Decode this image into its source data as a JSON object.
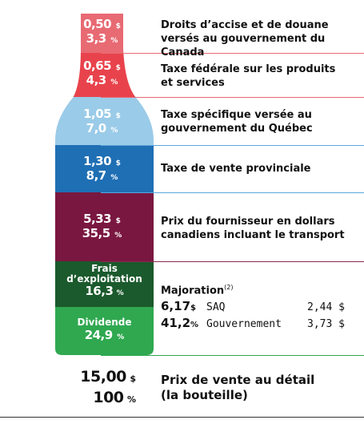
{
  "colors": {
    "band1": "#e86a73",
    "band2": "#e8434c",
    "band3": "#9acbe8",
    "band4": "#1f6fb4",
    "band5": "#7a1740",
    "band6": "#1b5a2c",
    "band7": "#2fa850",
    "sep_red": "#e86a73",
    "sep_blue": "#5aa6dc",
    "sep_purple": "#8a2a50",
    "sep_green": "#2fa850"
  },
  "segments": [
    {
      "amount": "0,50",
      "percent": "3,3",
      "label_line1": "Droits d’accise et de douane",
      "label_line2": "versés au gouvernement du Canada"
    },
    {
      "amount": "0,65",
      "percent": "4,3",
      "label_line1": "Taxe fédérale sur les produits",
      "label_line2": "et services"
    },
    {
      "amount": "1,05",
      "percent": "7,0",
      "label_line1": "Taxe spécifique versée au",
      "label_line2": "gouvernement du Québec"
    },
    {
      "amount": "1,30",
      "percent": "8,7",
      "label_line1": "Taxe de vente provinciale",
      "label_line2": ""
    },
    {
      "amount": "5,33",
      "percent": "35,5",
      "label_line1": "Prix du fournisseur en dollars",
      "label_line2": "canadiens incluant le transport"
    },
    {
      "name_line1": "Frais",
      "name_line2": "d’exploitation",
      "percent": "16,3"
    },
    {
      "name": "Dividende",
      "percent": "24,9"
    }
  ],
  "majoration": {
    "title": "Majoration",
    "note": "(2)",
    "amount": "6,17",
    "percent": "41,2",
    "rows": [
      {
        "name": "SAQ",
        "value": "2,44"
      },
      {
        "name": "Gouvernement",
        "value": "3,73"
      }
    ]
  },
  "symbols": {
    "dollar": "$",
    "percent": "%"
  },
  "total": {
    "amount": "15,00",
    "percent": "100",
    "label_line1": "Prix de vente au détail",
    "label_line2": "(la bouteille)"
  }
}
